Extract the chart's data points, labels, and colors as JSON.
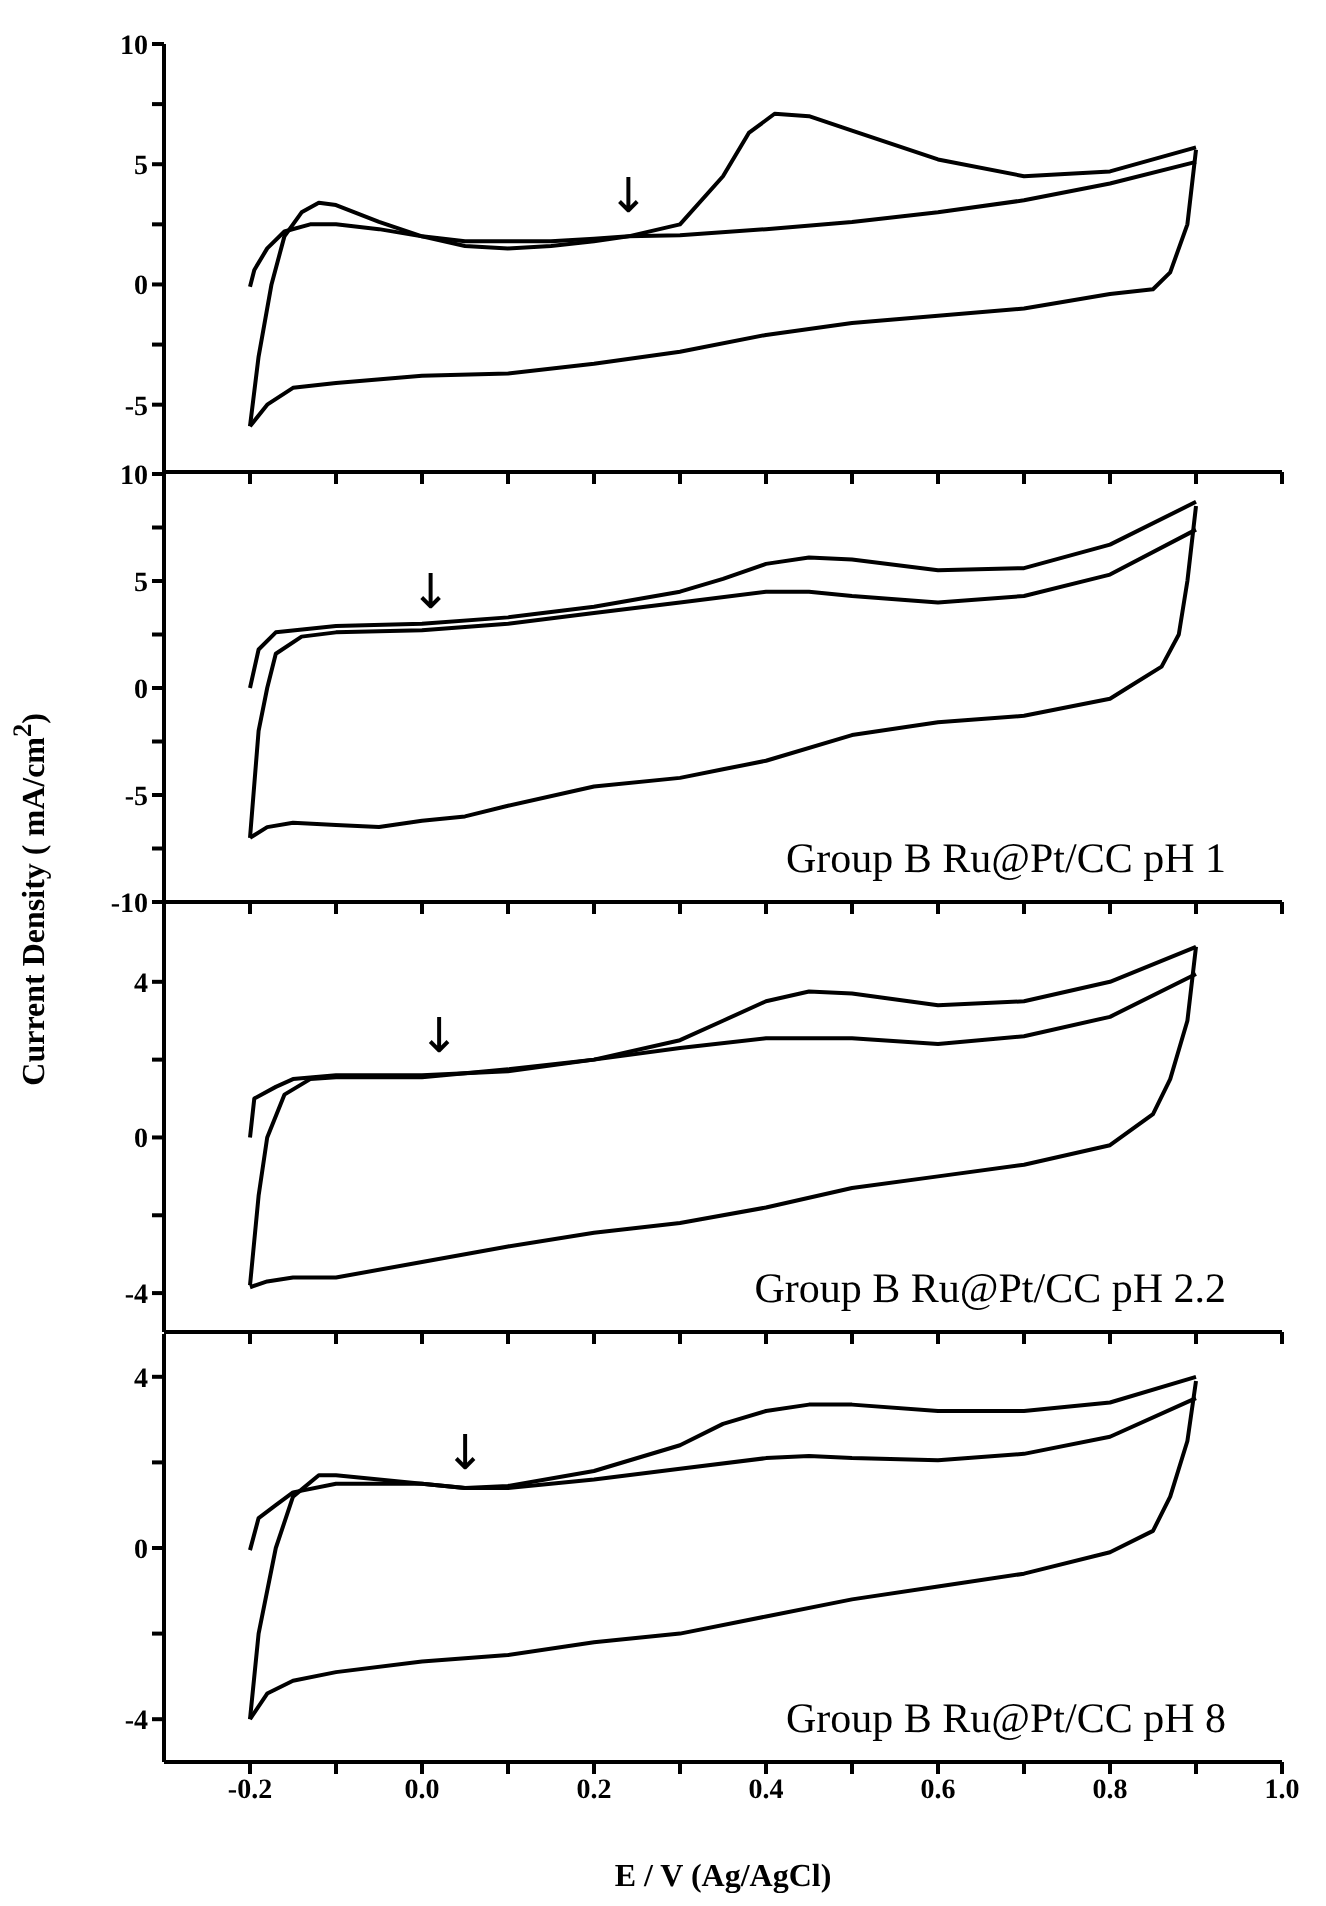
{
  "chart_data": [
    {
      "type": "line",
      "tick_labels": "y",
      "xlim": [
        -0.3,
        1.0
      ],
      "xticks": [
        -0.2,
        {
          "value": -0.1,
          "label": null
        },
        0,
        {
          "value": 0.1,
          "label": null
        },
        0.2,
        {
          "value": 0.3,
          "label": null
        },
        0.4,
        {
          "value": 0.5,
          "label": null
        },
        0.6,
        {
          "value": 0.7,
          "label": null
        },
        0.8,
        {
          "value": 0.9,
          "label": null
        },
        1
      ],
      "ylim": [
        -7.8,
        10
      ],
      "yticks": [
        -5,
        {
          "value": -2.5,
          "label": null
        },
        0,
        {
          "value": 2.5,
          "label": null
        },
        5,
        {
          "value": 7.5,
          "label": null
        },
        10
      ],
      "annotations": [
        {
          "text": "↓",
          "x": 0.24,
          "y": 2.5
        }
      ],
      "series": [
        {
          "color": "#000000",
          "x": [
            -0.2,
            -0.195,
            -0.18,
            -0.16,
            -0.13,
            -0.1,
            -0.05,
            0,
            0.05,
            0.1,
            0.15,
            0.2,
            0.24,
            0.3,
            0.35,
            0.38,
            0.41,
            0.45,
            0.5,
            0.6,
            0.7,
            0.8,
            0.9
          ],
          "values": [
            -0.1,
            0.6,
            1.5,
            2.2,
            2.5,
            2.5,
            2.3,
            2.0,
            1.8,
            1.8,
            1.8,
            1.9,
            2.0,
            2.5,
            4.5,
            6.3,
            7.1,
            7.0,
            6.4,
            5.2,
            4.5,
            4.7,
            5.7
          ]
        },
        {
          "color": "#000000",
          "x": [
            -0.2,
            -0.19,
            -0.175,
            -0.16,
            -0.14,
            -0.12,
            -0.1,
            -0.05,
            0,
            0.05,
            0.1,
            0.15,
            0.2,
            0.24,
            0.3,
            0.4,
            0.5,
            0.6,
            0.7,
            0.8,
            0.9
          ],
          "values": [
            -5.9,
            -3,
            0,
            2.0,
            3.0,
            3.4,
            3.3,
            2.6,
            2.0,
            1.6,
            1.5,
            1.6,
            1.8,
            2.0,
            2.05,
            2.3,
            2.6,
            3.0,
            3.5,
            4.2,
            5.1
          ]
        },
        {
          "color": "#000000",
          "x": [
            0.9,
            0.89,
            0.87,
            0.85,
            0.8,
            0.7,
            0.6,
            0.5,
            0.4,
            0.3,
            0.2,
            0.1,
            0,
            -0.1,
            -0.15,
            -0.18,
            -0.2
          ],
          "values": [
            5.6,
            2.5,
            0.5,
            -0.2,
            -0.4,
            -1.0,
            -1.3,
            -1.6,
            -2.1,
            -2.8,
            -3.3,
            -3.7,
            -3.8,
            -4.1,
            -4.3,
            -5.0,
            -5.9
          ]
        }
      ]
    },
    {
      "type": "line",
      "tick_labels": "y",
      "xlim": [
        -0.3,
        1.0
      ],
      "xticks": [
        -0.2,
        {
          "value": -0.1,
          "label": null
        },
        0,
        {
          "value": 0.1,
          "label": null
        },
        0.2,
        {
          "value": 0.3,
          "label": null
        },
        0.4,
        {
          "value": 0.5,
          "label": null
        },
        0.6,
        {
          "value": 0.7,
          "label": null
        },
        0.8,
        {
          "value": 0.9,
          "label": null
        },
        1
      ],
      "ylim": [
        -10,
        10
      ],
      "yticks": [
        -10,
        {
          "value": -7.5,
          "label": null
        },
        -5,
        {
          "value": -2.5,
          "label": null
        },
        0,
        {
          "value": 2.5,
          "label": null
        },
        5,
        {
          "value": 7.5,
          "label": null
        },
        10
      ],
      "ylabel": "Current Density ( mA/cm$^{2}$)",
      "annotations": [
        {
          "text": "↓",
          "x": 0.01,
          "y": 3.2
        },
        "Group B Ru@Pt/CC pH 1"
      ],
      "series": [
        {
          "color": "#000000",
          "x": [
            -0.2,
            -0.19,
            -0.17,
            -0.1,
            0,
            0.1,
            0.2,
            0.3,
            0.35,
            0.4,
            0.45,
            0.5,
            0.6,
            0.7,
            0.8,
            0.9
          ],
          "values": [
            0,
            1.8,
            2.6,
            2.9,
            3.0,
            3.3,
            3.8,
            4.5,
            5.1,
            5.8,
            6.1,
            6.0,
            5.5,
            5.6,
            6.7,
            8.7
          ]
        },
        {
          "color": "#000000",
          "x": [
            -0.2,
            -0.19,
            -0.18,
            -0.17,
            -0.14,
            -0.1,
            0,
            0.1,
            0.2,
            0.3,
            0.4,
            0.45,
            0.5,
            0.6,
            0.7,
            0.8,
            0.9
          ],
          "values": [
            -7.0,
            -2,
            0,
            1.6,
            2.4,
            2.6,
            2.7,
            3.0,
            3.5,
            4.0,
            4.5,
            4.5,
            4.3,
            4.0,
            4.3,
            5.3,
            7.4
          ]
        },
        {
          "color": "#000000",
          "x": [
            0.9,
            0.89,
            0.88,
            0.86,
            0.82,
            0.8,
            0.7,
            0.6,
            0.5,
            0.4,
            0.35,
            0.3,
            0.2,
            0.1,
            0.05,
            0,
            -0.05,
            -0.1,
            -0.15,
            -0.18,
            -0.2
          ],
          "values": [
            8.5,
            5,
            2.5,
            1,
            0,
            -0.5,
            -1.3,
            -1.6,
            -2.2,
            -3.4,
            -3.8,
            -4.2,
            -4.6,
            -5.5,
            -6.0,
            -6.2,
            -6.5,
            -6.4,
            -6.3,
            -6.5,
            -7.0
          ]
        }
      ]
    },
    {
      "type": "line",
      "tick_labels": "y",
      "xlim": [
        -0.3,
        1.0
      ],
      "xticks": [
        -0.2,
        {
          "value": -0.1,
          "label": null
        },
        0,
        {
          "value": 0.1,
          "label": null
        },
        0.2,
        {
          "value": 0.3,
          "label": null
        },
        0.4,
        {
          "value": 0.5,
          "label": null
        },
        0.6,
        {
          "value": 0.7,
          "label": null
        },
        0.8,
        {
          "value": 0.9,
          "label": null
        },
        1
      ],
      "ylim": [
        -5,
        6
      ],
      "yticks": [
        -4,
        {
          "value": -2,
          "label": null
        },
        0,
        {
          "value": 2,
          "label": null
        },
        4
      ],
      "annotations": [
        {
          "text": "↓",
          "x": 0.02,
          "y": 1.9
        },
        "Group B Ru@Pt/CC pH 2.2"
      ],
      "series": [
        {
          "color": "#000000",
          "x": [
            -0.2,
            -0.195,
            -0.17,
            -0.15,
            -0.1,
            0,
            0.1,
            0.2,
            0.3,
            0.35,
            0.4,
            0.45,
            0.5,
            0.6,
            0.7,
            0.8,
            0.9
          ],
          "values": [
            0,
            1.0,
            1.3,
            1.5,
            1.6,
            1.6,
            1.7,
            2.0,
            2.5,
            3.0,
            3.5,
            3.75,
            3.7,
            3.4,
            3.5,
            4.0,
            4.9
          ]
        },
        {
          "color": "#000000",
          "x": [
            -0.2,
            -0.19,
            -0.18,
            -0.16,
            -0.13,
            -0.1,
            0,
            0.1,
            0.2,
            0.3,
            0.4,
            0.5,
            0.6,
            0.7,
            0.8,
            0.9
          ],
          "values": [
            -3.8,
            -1.5,
            0,
            1.1,
            1.5,
            1.55,
            1.55,
            1.75,
            2.0,
            2.3,
            2.55,
            2.55,
            2.4,
            2.6,
            3.1,
            4.2
          ]
        },
        {
          "color": "#000000",
          "x": [
            0.9,
            0.89,
            0.87,
            0.85,
            0.8,
            0.7,
            0.6,
            0.5,
            0.4,
            0.3,
            0.2,
            0.1,
            0,
            -0.1,
            -0.15,
            -0.18,
            -0.2
          ],
          "values": [
            4.9,
            3,
            1.5,
            0.6,
            -0.2,
            -0.7,
            -1.0,
            -1.3,
            -1.8,
            -2.2,
            -2.45,
            -2.8,
            -3.2,
            -3.6,
            -3.6,
            -3.7,
            -3.85
          ]
        }
      ]
    },
    {
      "type": "line",
      "xlabel": "E / V (Ag/AgCl)",
      "xlim": [
        -0.3,
        1.0
      ],
      "xticks": [
        {
          "value": -0.2,
          "label": "-0.2"
        },
        {
          "value": -0.1,
          "label": null
        },
        {
          "value": 0,
          "label": "0.0"
        },
        {
          "value": 0.1,
          "label": null
        },
        0.2,
        {
          "value": 0.3,
          "label": null
        },
        0.4,
        {
          "value": 0.5,
          "label": null
        },
        0.6,
        {
          "value": 0.7,
          "label": null
        },
        0.8,
        {
          "value": 0.9,
          "label": null
        },
        {
          "value": 1,
          "label": "1.0"
        }
      ],
      "ylim": [
        -5,
        5
      ],
      "yticks": [
        -4,
        {
          "value": -2,
          "label": null
        },
        0,
        {
          "value": 2,
          "label": null
        },
        4
      ],
      "annotations": [
        {
          "text": "↓",
          "x": 0.05,
          "y": 1.56
        },
        "Group B Ru@Pt/CC pH 8"
      ],
      "series": [
        {
          "color": "#000000",
          "x": [
            -0.2,
            -0.19,
            -0.17,
            -0.15,
            -0.1,
            0,
            0.05,
            0.1,
            0.2,
            0.3,
            0.35,
            0.4,
            0.45,
            0.5,
            0.6,
            0.7,
            0.8,
            0.9
          ],
          "values": [
            -0.05,
            0.7,
            1.0,
            1.3,
            1.5,
            1.5,
            1.4,
            1.45,
            1.8,
            2.4,
            2.9,
            3.2,
            3.35,
            3.35,
            3.2,
            3.2,
            3.4,
            4.0
          ]
        },
        {
          "color": "#000000",
          "x": [
            -0.2,
            -0.19,
            -0.17,
            -0.15,
            -0.12,
            -0.1,
            -0.05,
            0,
            0.05,
            0.1,
            0.2,
            0.3,
            0.4,
            0.45,
            0.5,
            0.6,
            0.7,
            0.8,
            0.9
          ],
          "values": [
            -4,
            -2,
            0,
            1.2,
            1.7,
            1.7,
            1.6,
            1.5,
            1.4,
            1.4,
            1.6,
            1.85,
            2.1,
            2.15,
            2.1,
            2.05,
            2.2,
            2.6,
            3.5
          ]
        },
        {
          "color": "#000000",
          "x": [
            0.9,
            0.89,
            0.87,
            0.85,
            0.8,
            0.7,
            0.6,
            0.5,
            0.4,
            0.3,
            0.2,
            0.1,
            0,
            -0.1,
            -0.15,
            -0.18,
            -0.2
          ],
          "values": [
            3.9,
            2.5,
            1.2,
            0.4,
            -0.1,
            -0.6,
            -0.9,
            -1.2,
            -1.6,
            -2.0,
            -2.2,
            -2.5,
            -2.65,
            -2.9,
            -3.1,
            -3.4,
            -4.0
          ]
        }
      ]
    }
  ]
}
